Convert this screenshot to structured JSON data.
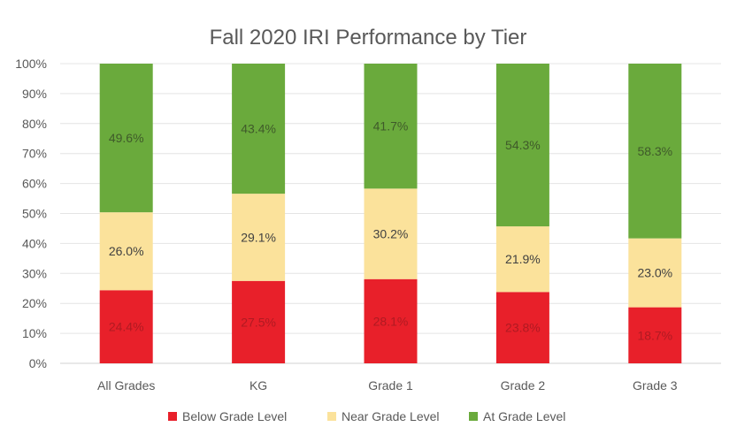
{
  "chart_data": {
    "type": "bar",
    "stacked": true,
    "title": "Fall 2020 IRI Performance by Tier",
    "xlabel": "",
    "ylabel": "",
    "ylim": [
      0,
      100
    ],
    "yticks": [
      "0%",
      "10%",
      "20%",
      "30%",
      "40%",
      "50%",
      "60%",
      "70%",
      "80%",
      "90%",
      "100%"
    ],
    "grid": true,
    "legend_position": "bottom",
    "categories": [
      "All Grades",
      "KG",
      "Grade 1",
      "Grade 2",
      "Grade 3"
    ],
    "series": [
      {
        "name": "Below Grade Level",
        "color": "#e8202a",
        "label_color": "#b01a22",
        "values": [
          24.4,
          27.5,
          28.1,
          23.8,
          18.7
        ],
        "labels": [
          "24.4%",
          "27.5%",
          "28.1%",
          "23.8%",
          "18.7%"
        ]
      },
      {
        "name": "Near Grade Level",
        "color": "#fbe29b",
        "label_color": "#404040",
        "values": [
          26.0,
          29.1,
          30.2,
          21.9,
          23.0
        ],
        "labels": [
          "26.0%",
          "29.1%",
          "30.2%",
          "21.9%",
          "23.0%"
        ]
      },
      {
        "name": "At Grade Level",
        "color": "#6aaa3c",
        "label_color": "#3f5a2a",
        "values": [
          49.6,
          43.4,
          41.7,
          54.3,
          58.3
        ],
        "labels": [
          "49.6%",
          "43.4%",
          "41.7%",
          "54.3%",
          "58.3%"
        ]
      }
    ]
  }
}
